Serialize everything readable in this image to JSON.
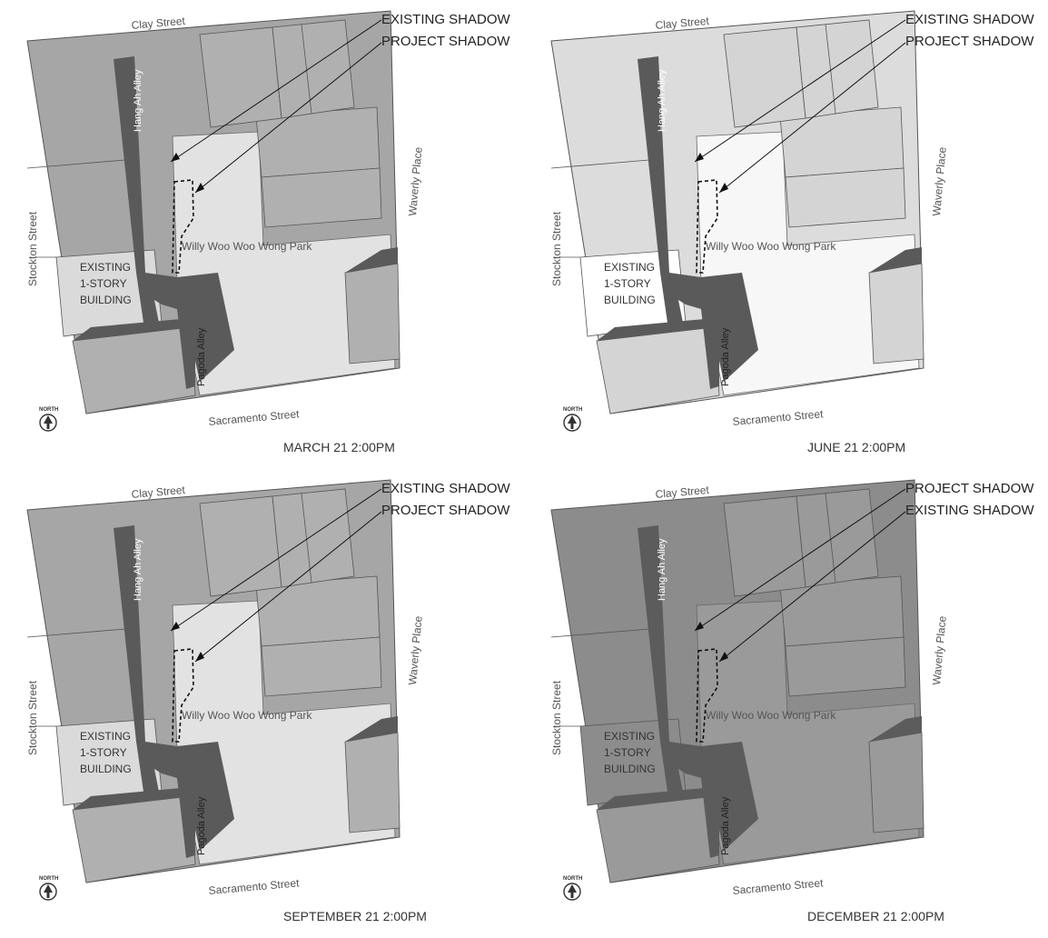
{
  "panels": [
    {
      "caption": "MARCH 21  2:00PM",
      "callouts": [
        "EXISTING SHADOW",
        "PROJECT SHADOW"
      ],
      "streets": {
        "clay": "Clay Street",
        "stockton": "Stockton Street",
        "sacramento": "Sacramento Street",
        "waverly": "Waverly Place",
        "hang_ah": "Hang Ah Alley",
        "pagoda": "Pagoda Alley"
      },
      "park": "Willy Woo Woo Wong Park",
      "building": [
        "EXISTING",
        "1-STORY",
        "BUILDING"
      ],
      "north": "NORTH",
      "colors": {
        "block": "#a6a6a6",
        "park": "#e2e2e2",
        "building": "#dadada",
        "shadow": "#5a5a5a",
        "lower": "#b0b0b0"
      }
    },
    {
      "caption": "JUNE 21  2:00PM",
      "callouts": [
        "EXISTING SHADOW",
        "PROJECT SHADOW"
      ],
      "streets": {
        "clay": "Clay Street",
        "stockton": "Stockton Street",
        "sacramento": "Sacramento Street",
        "waverly": "Waverly Place",
        "hang_ah": "Hang Ah Alley",
        "pagoda": "Pagoda Alley"
      },
      "park": "Willy Woo Woo Wong Park",
      "building": [
        "EXISTING",
        "1-STORY",
        "BUILDING"
      ],
      "north": "NORTH",
      "colors": {
        "block": "#dcdcdc",
        "park": "#f7f7f7",
        "building": "#ffffff",
        "shadow": "#5a5a5a",
        "lower": "#d4d4d4"
      }
    },
    {
      "caption": "SEPTEMBER 21  2:00PM",
      "callouts": [
        "EXISTING SHADOW",
        "PROJECT SHADOW"
      ],
      "streets": {
        "clay": "Clay Street",
        "stockton": "Stockton Street",
        "sacramento": "Sacramento Street",
        "waverly": "Waverly Place",
        "hang_ah": "Hang Ah Alley",
        "pagoda": "Pagoda Alley"
      },
      "park": "Willy Woo Woo Wong Park",
      "building": [
        "EXISTING",
        "1-STORY",
        "BUILDING"
      ],
      "north": "NORTH",
      "colors": {
        "block": "#a6a6a6",
        "park": "#e2e2e2",
        "building": "#dadada",
        "shadow": "#5a5a5a",
        "lower": "#b0b0b0"
      }
    },
    {
      "caption": "DECEMBER 21 2:00PM",
      "callouts": [
        "PROJECT SHADOW",
        "EXISTING SHADOW"
      ],
      "streets": {
        "clay": "Clay Street",
        "stockton": "Stockton Street",
        "sacramento": "Sacramento Street",
        "waverly": "Waverly Place",
        "hang_ah": "Hang Ah Alley",
        "pagoda": "Pagoda Alley"
      },
      "park": "Willy Woo Woo Wong Park",
      "building": [
        "EXISTING",
        "1-STORY",
        "BUILDING"
      ],
      "north": "NORTH",
      "colors": {
        "block": "#8c8c8c",
        "park": "#9a9a9a",
        "building": "#8c8c8c",
        "shadow": "#5c5c5c",
        "lower": "#9a9a9a"
      }
    }
  ]
}
